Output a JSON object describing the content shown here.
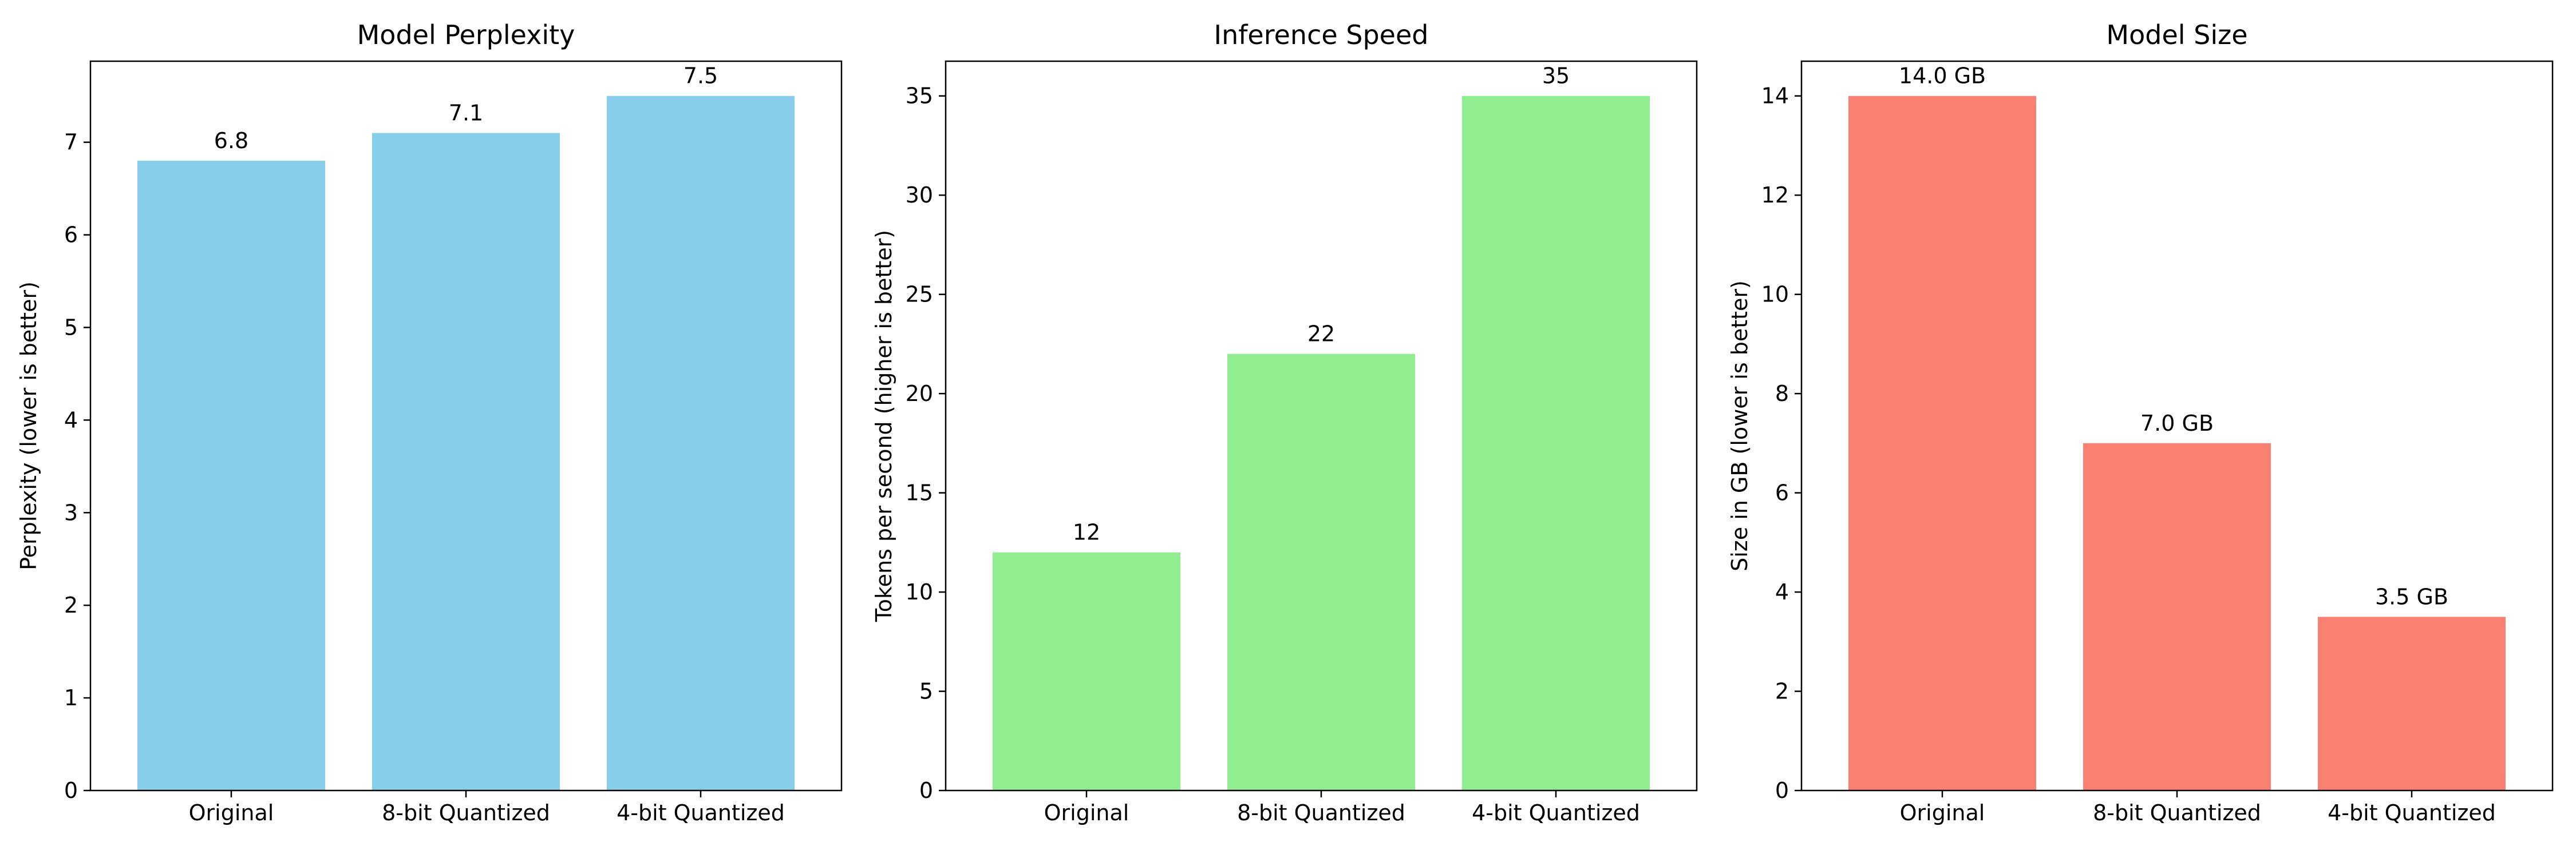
{
  "chart_data": [
    {
      "type": "bar",
      "title": "Model Perplexity",
      "xlabel": "",
      "ylabel": "Perplexity (lower is better)",
      "categories": [
        "Original",
        "8-bit Quantized",
        "4-bit Quantized"
      ],
      "values": [
        6.8,
        7.1,
        7.5
      ],
      "value_labels": [
        "6.8",
        "7.1",
        "7.5"
      ],
      "ylim": [
        0,
        7.875
      ],
      "yticks": [
        0,
        1,
        2,
        3,
        4,
        5,
        6,
        7
      ],
      "color": "#87CEEB",
      "grid": false,
      "legend": "none"
    },
    {
      "type": "bar",
      "title": "Inference Speed",
      "xlabel": "",
      "ylabel": "Tokens per second (higher is better)",
      "categories": [
        "Original",
        "8-bit Quantized",
        "4-bit Quantized"
      ],
      "values": [
        12,
        22,
        35
      ],
      "value_labels": [
        "12",
        "22",
        "35"
      ],
      "ylim": [
        0,
        36.75
      ],
      "yticks": [
        0,
        5,
        10,
        15,
        20,
        25,
        30,
        35
      ],
      "color": "#90EE90",
      "grid": false,
      "legend": "none"
    },
    {
      "type": "bar",
      "title": "Model Size",
      "xlabel": "",
      "ylabel": "Size in GB (lower is better)",
      "categories": [
        "Original",
        "8-bit Quantized",
        "4-bit Quantized"
      ],
      "values": [
        14.0,
        7.0,
        3.5
      ],
      "value_labels": [
        "14.0 GB",
        "7.0 GB",
        "3.5 GB"
      ],
      "ylim": [
        0,
        14.7
      ],
      "yticks": [
        0,
        2,
        4,
        6,
        8,
        10,
        12,
        14
      ],
      "color": "#FA8072",
      "grid": false,
      "legend": "none"
    }
  ]
}
